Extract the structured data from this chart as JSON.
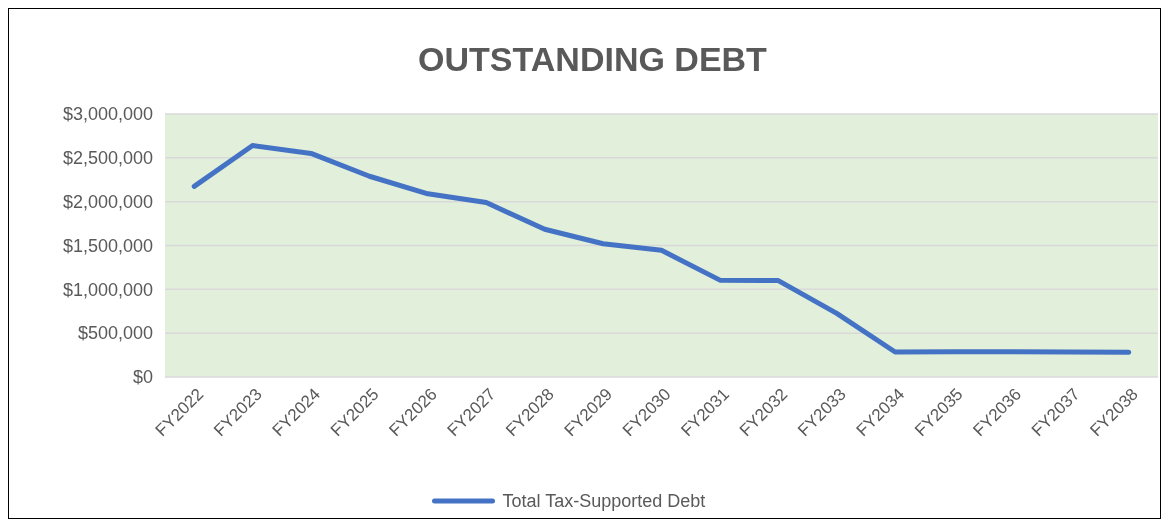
{
  "chart_data": {
    "type": "line",
    "title": "OUTSTANDING DEBT",
    "categories": [
      "FY2022",
      "FY2023",
      "FY2024",
      "FY2025",
      "FY2026",
      "FY2027",
      "FY2028",
      "FY2029",
      "FY2030",
      "FY2031",
      "FY2032",
      "FY2033",
      "FY2034",
      "FY2035",
      "FY2036",
      "FY2037",
      "FY2038"
    ],
    "series": [
      {
        "name": "Total Tax-Supported Debt",
        "color": "#4472c4",
        "values": [
          2175000,
          2640000,
          2550000,
          2290000,
          2090000,
          1990000,
          1685000,
          1520000,
          1445000,
          1105000,
          1100000,
          725000,
          285000,
          287000,
          287000,
          285000,
          283000
        ]
      }
    ],
    "ylim": [
      0,
      3000000
    ],
    "yticks": [
      {
        "value": 0,
        "label": "$0"
      },
      {
        "value": 500000,
        "label": "$500,000"
      },
      {
        "value": 1000000,
        "label": "$1,000,000"
      },
      {
        "value": 1500000,
        "label": "$1,500,000"
      },
      {
        "value": 2000000,
        "label": "$2,000,000"
      },
      {
        "value": 2500000,
        "label": "$2,500,000"
      },
      {
        "value": 3000000,
        "label": "$3,000,000"
      }
    ],
    "grid": "y",
    "legend": "bottom",
    "marker": "none",
    "line_style": "solid"
  }
}
